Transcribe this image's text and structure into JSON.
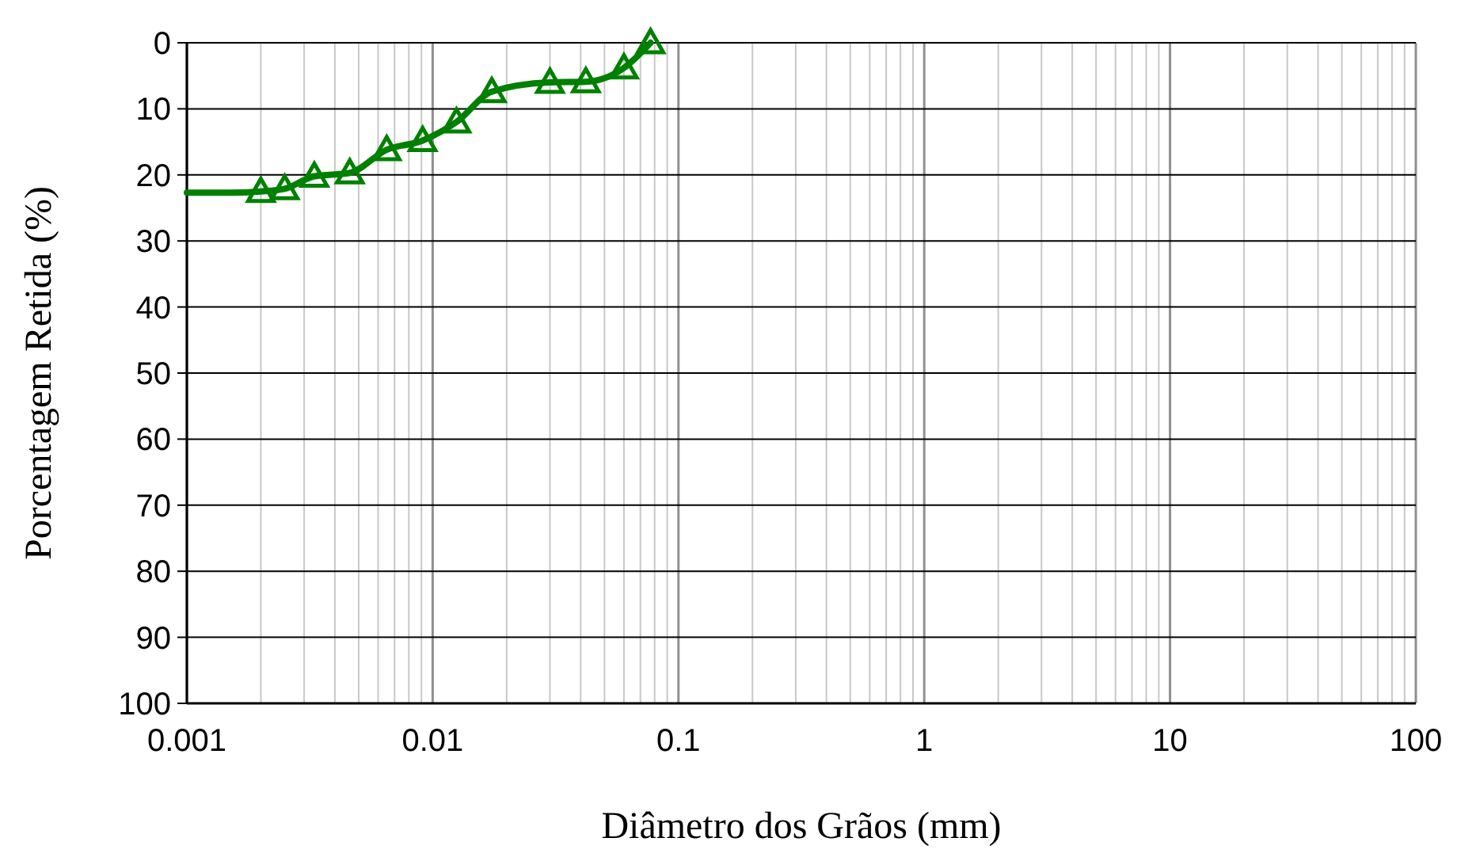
{
  "chart_data": {
    "type": "line",
    "xlabel": "Diâmetro dos Grãos (mm)",
    "ylabel": "Porcentagem Retida (%)",
    "log": "x",
    "grid": true,
    "xlim": [
      0.001,
      100
    ],
    "ylim": [
      100,
      0
    ],
    "xticks": [
      0.001,
      {
        "value": 0.002,
        "label": null
      },
      {
        "value": 0.003,
        "label": null
      },
      {
        "value": 0.004,
        "label": null
      },
      {
        "value": 0.005,
        "label": null
      },
      {
        "value": 0.006,
        "label": null
      },
      {
        "value": 0.007,
        "label": null
      },
      {
        "value": 0.008,
        "label": null
      },
      {
        "value": 0.009,
        "label": null
      },
      0.01,
      {
        "value": 0.02,
        "label": null
      },
      {
        "value": 0.03,
        "label": null
      },
      {
        "value": 0.04,
        "label": null
      },
      {
        "value": 0.05,
        "label": null
      },
      {
        "value": 0.06,
        "label": null
      },
      {
        "value": 0.07,
        "label": null
      },
      {
        "value": 0.08,
        "label": null
      },
      {
        "value": 0.09,
        "label": null
      },
      0.1,
      {
        "value": 0.2,
        "label": null
      },
      {
        "value": 0.3,
        "label": null
      },
      {
        "value": 0.4,
        "label": null
      },
      {
        "value": 0.5,
        "label": null
      },
      {
        "value": 0.6,
        "label": null
      },
      {
        "value": 0.7,
        "label": null
      },
      {
        "value": 0.8,
        "label": null
      },
      {
        "value": 0.9,
        "label": null
      },
      1,
      {
        "value": 2,
        "label": null
      },
      {
        "value": 3,
        "label": null
      },
      {
        "value": 4,
        "label": null
      },
      {
        "value": 5,
        "label": null
      },
      {
        "value": 6,
        "label": null
      },
      {
        "value": 7,
        "label": null
      },
      {
        "value": 8,
        "label": null
      },
      {
        "value": 9,
        "label": null
      },
      10,
      {
        "value": 20,
        "label": null
      },
      {
        "value": 30,
        "label": null
      },
      {
        "value": 40,
        "label": null
      },
      {
        "value": 50,
        "label": null
      },
      {
        "value": 60,
        "label": null
      },
      {
        "value": 70,
        "label": null
      },
      {
        "value": 80,
        "label": null
      },
      {
        "value": 90,
        "label": null
      },
      100
    ],
    "yticks": [
      0,
      10,
      20,
      30,
      40,
      50,
      60,
      70,
      80,
      90,
      100
    ],
    "series": [
      {
        "color": "#008000",
        "marker": "none",
        "line_style": "solid",
        "x": [
          0.001,
          0.0015,
          0.002,
          0.0025,
          0.0033,
          0.0046,
          0.0065,
          0.0091,
          0.0125,
          0.0174,
          0.03,
          0.042,
          0.06,
          0.077
        ],
        "values": [
          22.7,
          22.7,
          22.5,
          22.1,
          20.2,
          19.7,
          16.2,
          14.8,
          12.0,
          7.4,
          6.0,
          5.9,
          3.8,
          0
        ]
      },
      {
        "type": "scatter",
        "color": "#008000",
        "marker": "triangle",
        "x": [
          0.002,
          0.0025,
          0.0033,
          0.0046,
          0.0065,
          0.0091,
          0.0125,
          0.0174,
          0.03,
          0.042,
          0.06,
          0.077
        ],
        "values": [
          22.5,
          22.1,
          20.2,
          19.7,
          16.2,
          14.8,
          12.0,
          7.4,
          6.0,
          5.9,
          3.8,
          0
        ]
      }
    ]
  }
}
